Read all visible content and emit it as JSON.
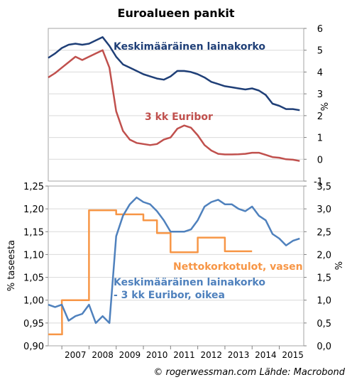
{
  "chart_data": [
    {
      "type": "line",
      "title": "Euroalueen pankit",
      "ylabel_right": "%",
      "ylim": [
        -1,
        6
      ],
      "yticks": [
        -1,
        0,
        1,
        2,
        3,
        4,
        5,
        6
      ],
      "grid": true,
      "series": [
        {
          "name": "Keskimääräinen lainakorko",
          "color": "#1f3f77",
          "points": [
            [
              2006.5,
              4.65
            ],
            [
              2006.75,
              4.85
            ],
            [
              2007.0,
              5.1
            ],
            [
              2007.25,
              5.25
            ],
            [
              2007.5,
              5.3
            ],
            [
              2007.75,
              5.25
            ],
            [
              2008.0,
              5.3
            ],
            [
              2008.25,
              5.45
            ],
            [
              2008.5,
              5.6
            ],
            [
              2008.75,
              5.2
            ],
            [
              2009.0,
              4.7
            ],
            [
              2009.25,
              4.35
            ],
            [
              2009.5,
              4.2
            ],
            [
              2009.75,
              4.05
            ],
            [
              2010.0,
              3.9
            ],
            [
              2010.25,
              3.8
            ],
            [
              2010.5,
              3.7
            ],
            [
              2010.75,
              3.65
            ],
            [
              2011.0,
              3.8
            ],
            [
              2011.25,
              4.05
            ],
            [
              2011.5,
              4.05
            ],
            [
              2011.75,
              4.0
            ],
            [
              2012.0,
              3.9
            ],
            [
              2012.25,
              3.75
            ],
            [
              2012.5,
              3.55
            ],
            [
              2012.75,
              3.45
            ],
            [
              2013.0,
              3.35
            ],
            [
              2013.25,
              3.3
            ],
            [
              2013.5,
              3.25
            ],
            [
              2013.75,
              3.2
            ],
            [
              2014.0,
              3.25
            ],
            [
              2014.25,
              3.15
            ],
            [
              2014.5,
              2.95
            ],
            [
              2014.75,
              2.55
            ],
            [
              2015.0,
              2.45
            ],
            [
              2015.25,
              2.3
            ],
            [
              2015.5,
              2.3
            ],
            [
              2015.75,
              2.25
            ]
          ]
        },
        {
          "name": "3 kk Euribor",
          "color": "#c0504d",
          "points": [
            [
              2006.5,
              3.75
            ],
            [
              2006.75,
              3.95
            ],
            [
              2007.0,
              4.2
            ],
            [
              2007.25,
              4.45
            ],
            [
              2007.5,
              4.7
            ],
            [
              2007.75,
              4.55
            ],
            [
              2008.0,
              4.7
            ],
            [
              2008.25,
              4.85
            ],
            [
              2008.5,
              5.0
            ],
            [
              2008.75,
              4.2
            ],
            [
              2009.0,
              2.2
            ],
            [
              2009.25,
              1.3
            ],
            [
              2009.5,
              0.9
            ],
            [
              2009.75,
              0.75
            ],
            [
              2010.0,
              0.7
            ],
            [
              2010.25,
              0.65
            ],
            [
              2010.5,
              0.7
            ],
            [
              2010.75,
              0.9
            ],
            [
              2011.0,
              1.0
            ],
            [
              2011.25,
              1.4
            ],
            [
              2011.5,
              1.55
            ],
            [
              2011.75,
              1.45
            ],
            [
              2012.0,
              1.1
            ],
            [
              2012.25,
              0.65
            ],
            [
              2012.5,
              0.4
            ],
            [
              2012.75,
              0.25
            ],
            [
              2013.0,
              0.22
            ],
            [
              2013.25,
              0.22
            ],
            [
              2013.5,
              0.23
            ],
            [
              2013.75,
              0.25
            ],
            [
              2014.0,
              0.3
            ],
            [
              2014.25,
              0.3
            ],
            [
              2014.5,
              0.2
            ],
            [
              2014.75,
              0.1
            ],
            [
              2015.0,
              0.07
            ],
            [
              2015.25,
              0.0
            ],
            [
              2015.5,
              -0.02
            ],
            [
              2015.75,
              -0.08
            ]
          ]
        }
      ],
      "annotations": [
        {
          "text": "Keskimääräinen lainakorko",
          "color": "#1f3f77"
        },
        {
          "text": "3 kk Euribor",
          "color": "#c0504d"
        }
      ]
    },
    {
      "type": "line",
      "ylabel_left": "% taseesta",
      "ylabel_right": "%",
      "ylim_left": [
        0.9,
        1.25
      ],
      "yticks_left": [
        0.9,
        0.95,
        1.0,
        1.05,
        1.1,
        1.15,
        1.2,
        1.25
      ],
      "ylim_right": [
        0.0,
        3.5
      ],
      "yticks_right": [
        0.0,
        0.5,
        1.0,
        1.5,
        2.0,
        2.5,
        3.0,
        3.5
      ],
      "xticks": [
        "2007",
        "2008",
        "2009",
        "2010",
        "2011",
        "2012",
        "2013",
        "2014",
        "2015"
      ],
      "grid": true,
      "series": [
        {
          "name": "Nettokorkotulot, vasen",
          "axis": "left",
          "color": "#f79646",
          "points": [
            [
              2006.5,
              0.925
            ],
            [
              2007.0,
              0.925
            ],
            [
              2007.0,
              0.925
            ],
            [
              2007.01,
              0.925
            ],
            [
              2007.0,
              1.0
            ],
            [
              2008.0,
              1.0
            ],
            [
              2008.0,
              1.197
            ],
            [
              2009.0,
              1.197
            ],
            [
              2009.0,
              1.188
            ],
            [
              2010.0,
              1.188
            ],
            [
              2010.0,
              1.175
            ],
            [
              2010.5,
              1.175
            ],
            [
              2010.5,
              1.147
            ],
            [
              2011.0,
              1.147
            ],
            [
              2011.0,
              1.105
            ],
            [
              2012.0,
              1.105
            ],
            [
              2012.0,
              1.137
            ],
            [
              2013.0,
              1.137
            ],
            [
              2013.0,
              1.107
            ],
            [
              2014.0,
              1.107
            ]
          ]
        },
        {
          "name": "Keskimääräinen lainakorko - 3 kk Euribor, oikea",
          "axis": "right",
          "color": "#4f81bd",
          "points": [
            [
              2006.5,
              0.9
            ],
            [
              2006.75,
              0.85
            ],
            [
              2007.0,
              0.9
            ],
            [
              2007.25,
              0.55
            ],
            [
              2007.5,
              0.65
            ],
            [
              2007.75,
              0.7
            ],
            [
              2008.0,
              0.9
            ],
            [
              2008.25,
              0.5
            ],
            [
              2008.5,
              0.65
            ],
            [
              2008.75,
              0.5
            ],
            [
              2009.0,
              2.4
            ],
            [
              2009.25,
              2.85
            ],
            [
              2009.5,
              3.1
            ],
            [
              2009.75,
              3.25
            ],
            [
              2010.0,
              3.15
            ],
            [
              2010.25,
              3.1
            ],
            [
              2010.5,
              2.95
            ],
            [
              2010.75,
              2.75
            ],
            [
              2011.0,
              2.5
            ],
            [
              2011.25,
              2.5
            ],
            [
              2011.5,
              2.5
            ],
            [
              2011.75,
              2.55
            ],
            [
              2012.0,
              2.75
            ],
            [
              2012.25,
              3.05
            ],
            [
              2012.5,
              3.15
            ],
            [
              2012.75,
              3.2
            ],
            [
              2013.0,
              3.1
            ],
            [
              2013.25,
              3.1
            ],
            [
              2013.5,
              3.0
            ],
            [
              2013.75,
              2.95
            ],
            [
              2014.0,
              3.05
            ],
            [
              2014.25,
              2.85
            ],
            [
              2014.5,
              2.75
            ],
            [
              2014.75,
              2.45
            ],
            [
              2015.0,
              2.35
            ],
            [
              2015.25,
              2.2
            ],
            [
              2015.5,
              2.3
            ],
            [
              2015.75,
              2.35
            ]
          ]
        }
      ],
      "annotations": [
        {
          "text": "Nettokorkotulot, vasen",
          "color": "#f79646"
        },
        {
          "text": "Keskimääräinen lainakorko",
          "color": "#4f81bd"
        },
        {
          "text": "- 3 kk Euribor, oikea",
          "color": "#4f81bd"
        }
      ]
    }
  ],
  "footer": {
    "credit": "© rogerwessman.com Lähde: Macrobond"
  },
  "colors": {
    "axis": "#808080",
    "grid": "#d9d9d9",
    "frame": "#a6a6a6"
  }
}
